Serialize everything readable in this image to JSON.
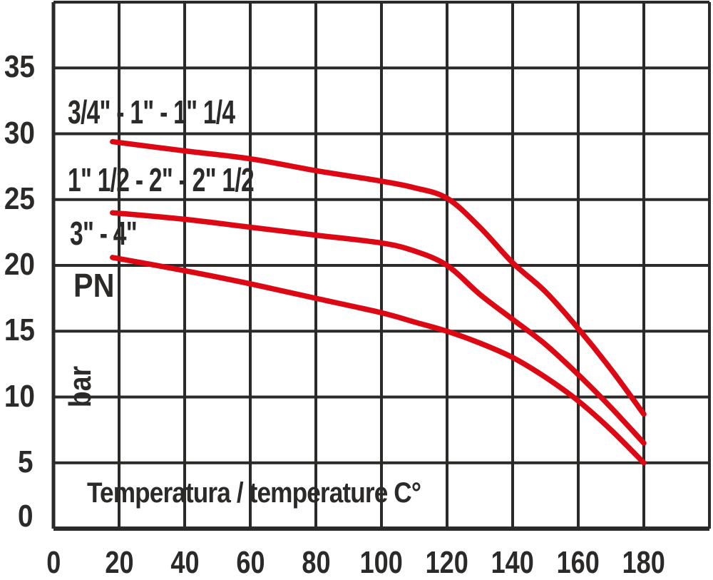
{
  "chart_data": {
    "type": "line",
    "title": "",
    "xlabel": "Temperatura / temperature C°",
    "ylabel": "PN",
    "ylabel_unit": "bar",
    "xlim": [
      0,
      200
    ],
    "ylim": [
      0,
      40
    ],
    "x_ticks": [
      0,
      20,
      40,
      60,
      80,
      100,
      120,
      140,
      160,
      180
    ],
    "y_ticks": [
      0,
      5,
      10,
      15,
      20,
      25,
      30,
      35
    ],
    "grid": true,
    "legend_position": "inline-left",
    "colors": {
      "line": "#dc0814",
      "grid": "#2b2a29",
      "text": "#2b2a29",
      "background": "#ffffff"
    },
    "series": [
      {
        "name": "3/4\" - 1\" - 1\" 1/4",
        "points": [
          [
            18,
            29.4
          ],
          [
            40,
            28.7
          ],
          [
            60,
            28.1
          ],
          [
            80,
            27.2
          ],
          [
            100,
            26.4
          ],
          [
            110,
            25.9
          ],
          [
            120,
            25.1
          ],
          [
            130,
            22.9
          ],
          [
            140,
            20.2
          ],
          [
            150,
            18.0
          ],
          [
            160,
            15.2
          ],
          [
            170,
            12.1
          ],
          [
            180,
            8.7
          ]
        ]
      },
      {
        "name": "1\" 1/2 - 2\" - 2\" 1/2",
        "points": [
          [
            18,
            24.0
          ],
          [
            40,
            23.5
          ],
          [
            60,
            22.9
          ],
          [
            80,
            22.3
          ],
          [
            100,
            21.7
          ],
          [
            110,
            21.1
          ],
          [
            120,
            20.0
          ],
          [
            130,
            17.8
          ],
          [
            140,
            15.9
          ],
          [
            150,
            14.0
          ],
          [
            160,
            11.7
          ],
          [
            170,
            9.2
          ],
          [
            180,
            6.5
          ]
        ]
      },
      {
        "name": "3\" - 4\"",
        "points": [
          [
            18,
            20.6
          ],
          [
            40,
            19.6
          ],
          [
            60,
            18.6
          ],
          [
            80,
            17.5
          ],
          [
            100,
            16.4
          ],
          [
            110,
            15.7
          ],
          [
            120,
            15.0
          ],
          [
            130,
            14.1
          ],
          [
            140,
            13.0
          ],
          [
            150,
            11.5
          ],
          [
            160,
            9.7
          ],
          [
            170,
            7.5
          ],
          [
            180,
            5.0
          ]
        ]
      }
    ]
  }
}
